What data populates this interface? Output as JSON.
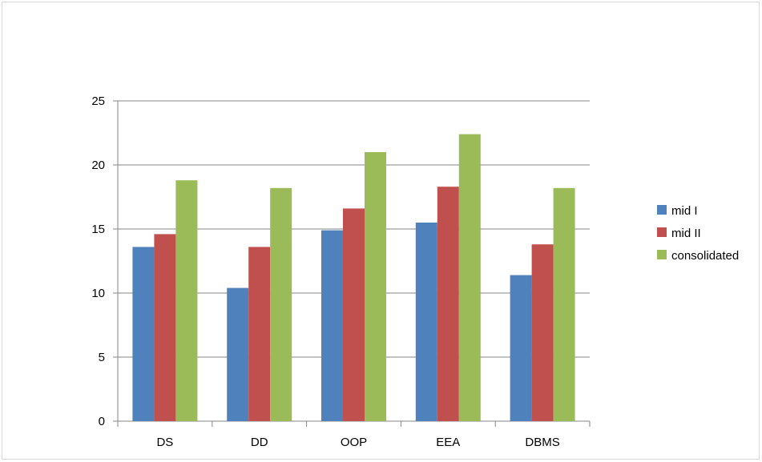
{
  "chart_data": {
    "type": "bar",
    "categories": [
      "DS",
      "DD",
      "OOP",
      "EEA",
      "DBMS"
    ],
    "series": [
      {
        "name": "mid I",
        "color": "#4f81bd",
        "values": [
          13.6,
          10.4,
          14.9,
          15.5,
          11.4
        ]
      },
      {
        "name": "mid II",
        "color": "#c0504d",
        "values": [
          14.6,
          13.6,
          16.6,
          18.3,
          13.8
        ]
      },
      {
        "name": "consolidated",
        "color": "#9bbb59",
        "values": [
          18.8,
          18.2,
          21.0,
          22.4,
          18.2
        ]
      }
    ],
    "y_ticks": [
      0,
      5,
      10,
      15,
      20,
      25
    ],
    "ylim": [
      0,
      25
    ],
    "grid": true,
    "legend_position": "right"
  }
}
